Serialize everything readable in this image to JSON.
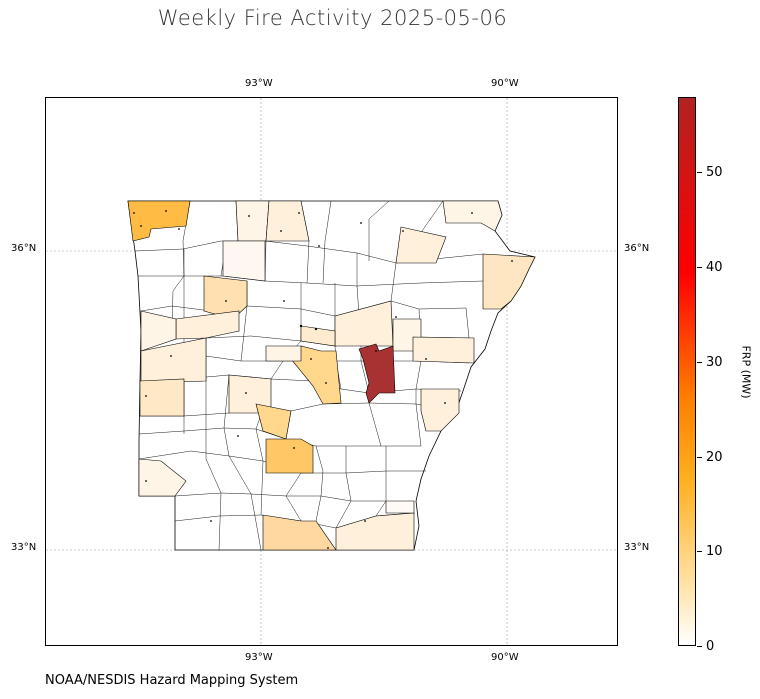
{
  "title": "Weekly Fire Activity 2025-05-06",
  "credit": "NOAA/NESDIS Hazard Mapping System",
  "map": {
    "lon_ticks": [
      "93°W",
      "90°W"
    ],
    "lat_ticks": [
      "36°N",
      "33°N"
    ],
    "region": "Arkansas counties",
    "gridlines": true
  },
  "colorbar": {
    "label": "FRP (MW)",
    "ticks": [
      "0",
      "10",
      "20",
      "30",
      "40",
      "50"
    ],
    "range": [
      0,
      58
    ],
    "colors": [
      "#ffffff",
      "#ffe0a0",
      "#ffb020",
      "#ff7f00",
      "#ff0000",
      "#b22222"
    ]
  }
}
